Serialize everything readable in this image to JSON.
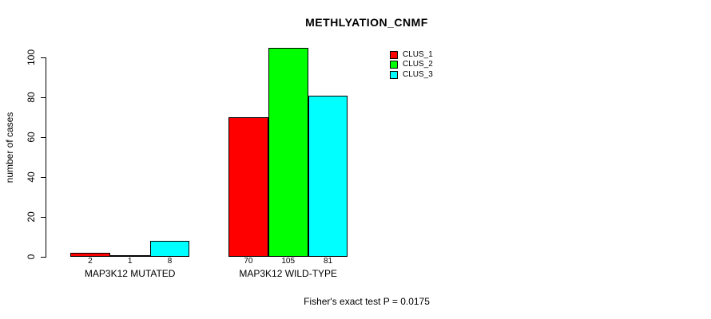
{
  "chart_data": {
    "type": "bar",
    "title": "METHLYATION_CNMF",
    "ylabel": "number of cases",
    "annotation": "Fisher's exact test P = 0.0175",
    "groups": [
      {
        "label": "MAP3K12 MUTATED",
        "values": [
          2,
          1,
          8
        ]
      },
      {
        "label": "MAP3K12 WILD-TYPE",
        "values": [
          70,
          105,
          81
        ]
      }
    ],
    "series": [
      {
        "name": "CLUS_1",
        "color": "#ff0000"
      },
      {
        "name": "CLUS_2",
        "color": "#00ff00"
      },
      {
        "name": "CLUS_3",
        "color": "#00ffff"
      }
    ],
    "yticks": [
      0,
      20,
      40,
      60,
      80,
      100
    ],
    "ylim": [
      0,
      105
    ],
    "bar_border_color": "#000000",
    "background_color": "#ffffff",
    "grid": false,
    "legend_position": "top-right"
  }
}
